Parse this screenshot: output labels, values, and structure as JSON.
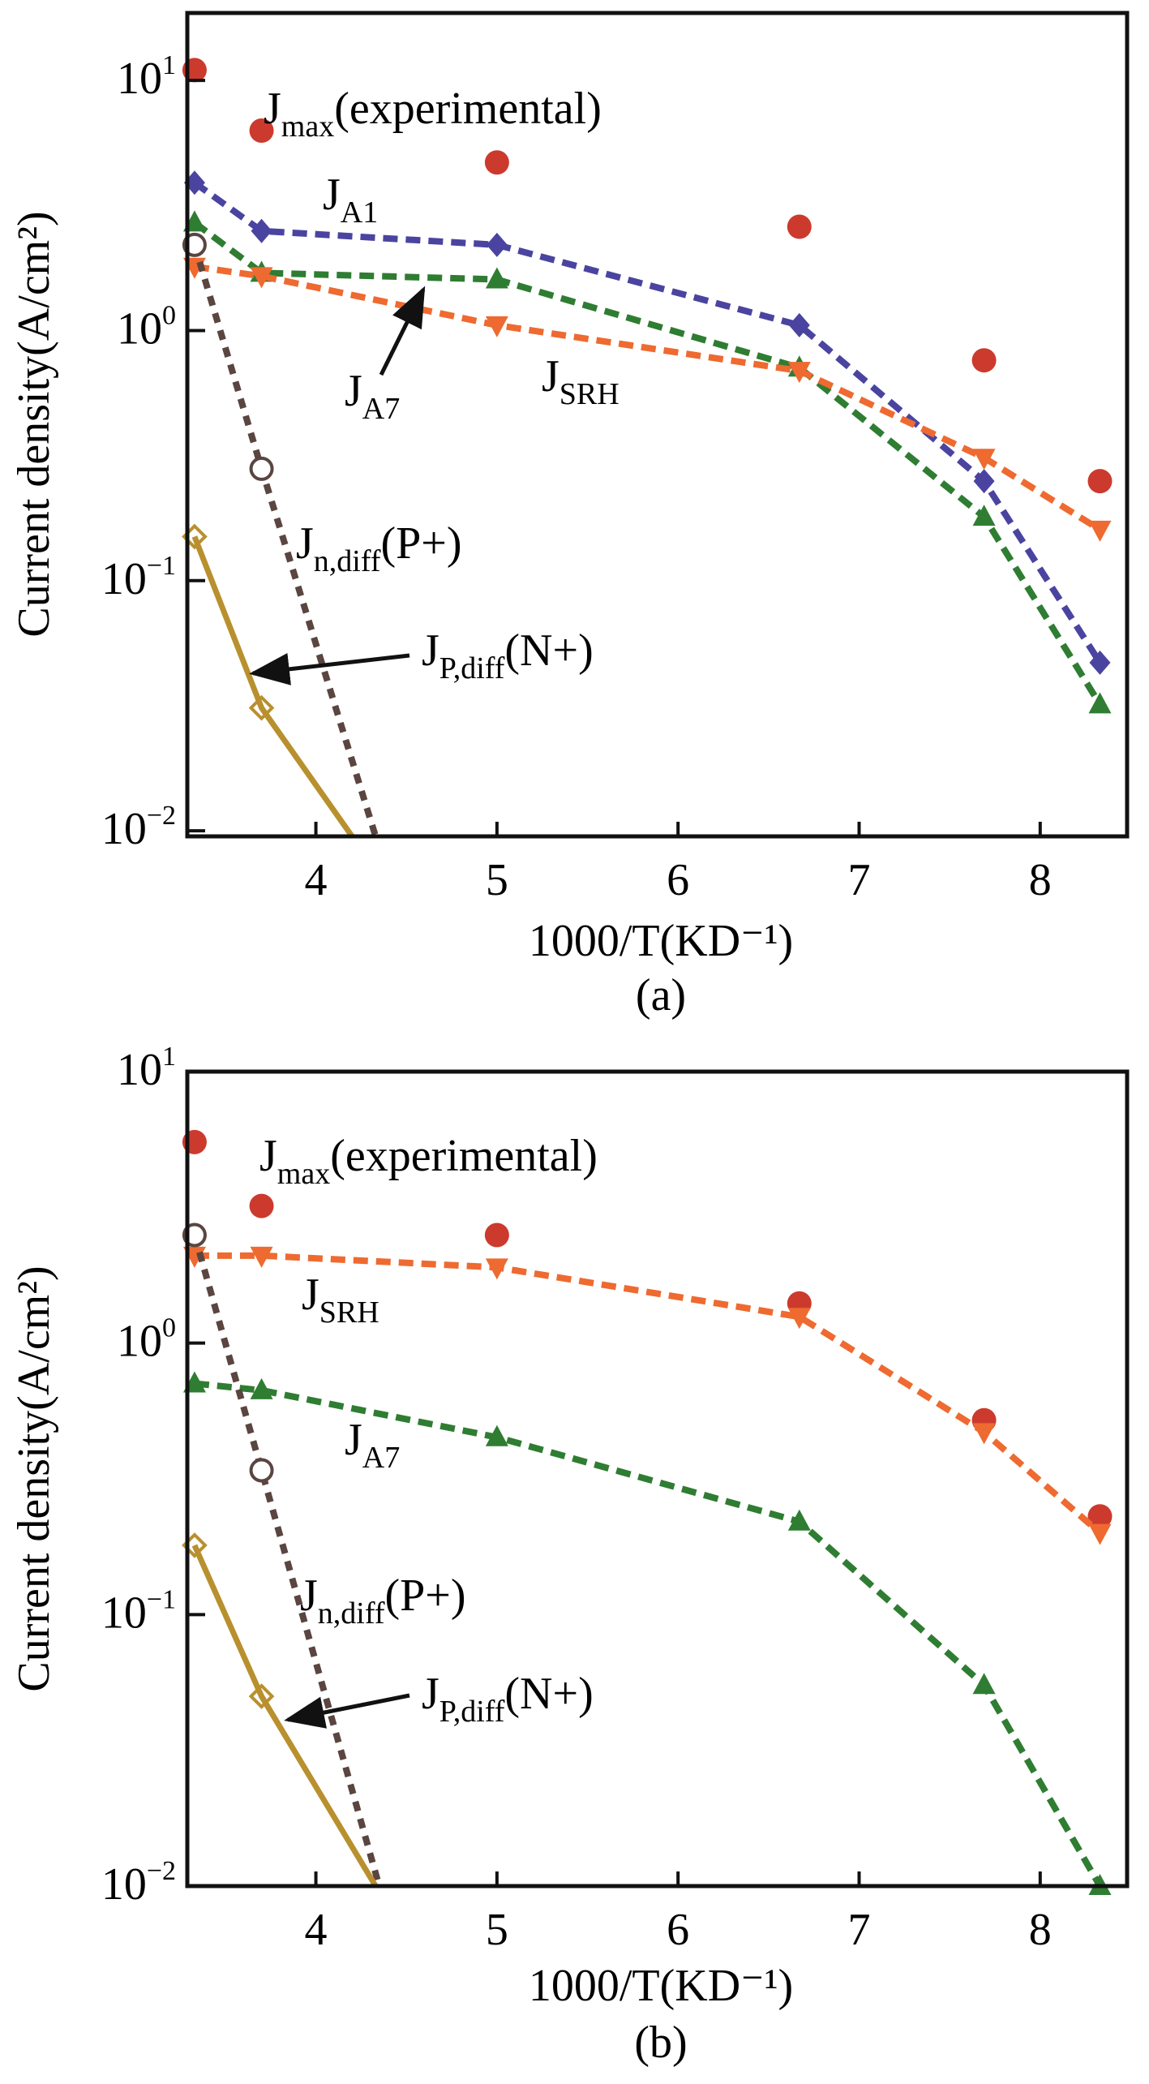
{
  "chart_data": [
    {
      "type": "line",
      "panel_label": "(a)",
      "xlabel": "1000/T(KD⁻¹)",
      "ylabel": "Current density(A/cm²)",
      "yscale": "log",
      "xlim": [
        3.29,
        8.48
      ],
      "ylim": [
        0.0095,
        18.6
      ],
      "xticks": [
        4,
        5,
        6,
        7,
        8
      ],
      "yticks": [
        {
          "value": 10,
          "label": "10",
          "exp": "1"
        },
        {
          "value": 1,
          "label": "10",
          "exp": "0"
        },
        {
          "value": 0.1,
          "label": "10",
          "exp": "−1"
        },
        {
          "value": 0.01,
          "label": "10",
          "exp": "−2"
        }
      ],
      "grid": false,
      "series": [
        {
          "name": "Jmax(experimental)",
          "style": "markers",
          "marker": "circle-filled",
          "color": "#cc3a2e",
          "x": [
            3.33,
            3.7,
            5.0,
            6.67,
            7.69,
            8.33
          ],
          "y": [
            11,
            6.3,
            4.7,
            2.6,
            0.76,
            0.25
          ]
        },
        {
          "name": "JA1",
          "style": "dashed",
          "marker": "diamond-filled",
          "color": "#4a44a0",
          "x": [
            3.33,
            3.7,
            5.0,
            6.67,
            7.69,
            8.33
          ],
          "y": [
            3.9,
            2.5,
            2.2,
            1.05,
            0.25,
            0.047
          ]
        },
        {
          "name": "JA7",
          "style": "dashed",
          "marker": "triangle-up-filled",
          "color": "#2f7d32",
          "x": [
            3.33,
            3.7,
            5.0,
            6.67,
            7.69,
            8.33
          ],
          "y": [
            2.7,
            1.7,
            1.6,
            0.71,
            0.18,
            0.032
          ]
        },
        {
          "name": "JSRH",
          "style": "dashed",
          "marker": "triangle-down-filled",
          "color": "#ee6a30",
          "x": [
            3.33,
            3.7,
            5.0,
            6.67,
            7.69,
            8.33
          ],
          "y": [
            1.8,
            1.65,
            1.05,
            0.69,
            0.31,
            0.16
          ]
        },
        {
          "name": "Jn,diff(P+)",
          "style": "dotted",
          "marker": "circle-open",
          "color": "#5a4540",
          "x": [
            3.33,
            3.7,
            4.33
          ],
          "y": [
            2.2,
            0.28,
            0.0095
          ]
        },
        {
          "name": "JP,diff(N+)",
          "style": "solid",
          "marker": "diamond-open",
          "color": "#b8902e",
          "x": [
            3.33,
            3.7,
            4.2
          ],
          "y": [
            0.15,
            0.031,
            0.0095
          ]
        }
      ],
      "annotations": [
        {
          "main": "J",
          "sub": "max",
          "rest": "(experimental)"
        },
        {
          "main": "J",
          "sub": "A1",
          "rest": ""
        },
        {
          "main": "J",
          "sub": "A7",
          "rest": "",
          "arrow": true
        },
        {
          "main": "J",
          "sub": "SRH",
          "rest": ""
        },
        {
          "main": "J",
          "sub": "n,diff",
          "rest": "(P+)"
        },
        {
          "main": "J",
          "sub": "P,diff",
          "rest": "(N+)",
          "arrow": true
        }
      ]
    },
    {
      "type": "line",
      "panel_label": "(b)",
      "xlabel": "1000/T(KD⁻¹)",
      "ylabel": "Current density(A/cm²)",
      "yscale": "log",
      "xlim": [
        3.29,
        8.48
      ],
      "ylim": [
        0.01,
        10
      ],
      "xticks": [
        4,
        5,
        6,
        7,
        8
      ],
      "yticks": [
        {
          "value": 10,
          "label": "10",
          "exp": "1"
        },
        {
          "value": 1,
          "label": "10",
          "exp": "0"
        },
        {
          "value": 0.1,
          "label": "10",
          "exp": "−1"
        },
        {
          "value": 0.01,
          "label": "10",
          "exp": "−2"
        }
      ],
      "grid": false,
      "series": [
        {
          "name": "Jmax(experimental)",
          "style": "markers",
          "marker": "circle-filled",
          "color": "#cc3a2e",
          "x": [
            3.33,
            3.7,
            5.0,
            6.67,
            7.69,
            8.33
          ],
          "y": [
            5.5,
            3.2,
            2.5,
            1.4,
            0.52,
            0.23
          ]
        },
        {
          "name": "JSRH",
          "style": "dashed",
          "marker": "triangle-down-filled",
          "color": "#ee6a30",
          "x": [
            3.33,
            3.7,
            5.0,
            6.67,
            7.69,
            8.33
          ],
          "y": [
            2.1,
            2.1,
            1.9,
            1.25,
            0.47,
            0.2
          ]
        },
        {
          "name": "JA7",
          "style": "dashed",
          "marker": "triangle-up-filled",
          "color": "#2f7d32",
          "x": [
            3.33,
            3.7,
            5.0,
            6.67,
            7.69,
            8.33
          ],
          "y": [
            0.71,
            0.67,
            0.45,
            0.22,
            0.055,
            0.01
          ]
        },
        {
          "name": "Jn,diff(P+)",
          "style": "dotted",
          "marker": "circle-open",
          "color": "#5a4540",
          "x": [
            3.33,
            3.7,
            4.35
          ],
          "y": [
            2.5,
            0.34,
            0.01
          ]
        },
        {
          "name": "JP,diff(N+)",
          "style": "solid",
          "marker": "diamond-open",
          "color": "#b8902e",
          "x": [
            3.33,
            3.7,
            4.33
          ],
          "y": [
            0.18,
            0.05,
            0.01
          ]
        }
      ],
      "annotations": [
        {
          "main": "J",
          "sub": "max",
          "rest": "(experimental)"
        },
        {
          "main": "J",
          "sub": "SRH",
          "rest": ""
        },
        {
          "main": "J",
          "sub": "A7",
          "rest": ""
        },
        {
          "main": "J",
          "sub": "n,diff",
          "rest": "(P+)"
        },
        {
          "main": "J",
          "sub": "P,diff",
          "rest": "(N+)",
          "arrow": true
        }
      ]
    }
  ]
}
